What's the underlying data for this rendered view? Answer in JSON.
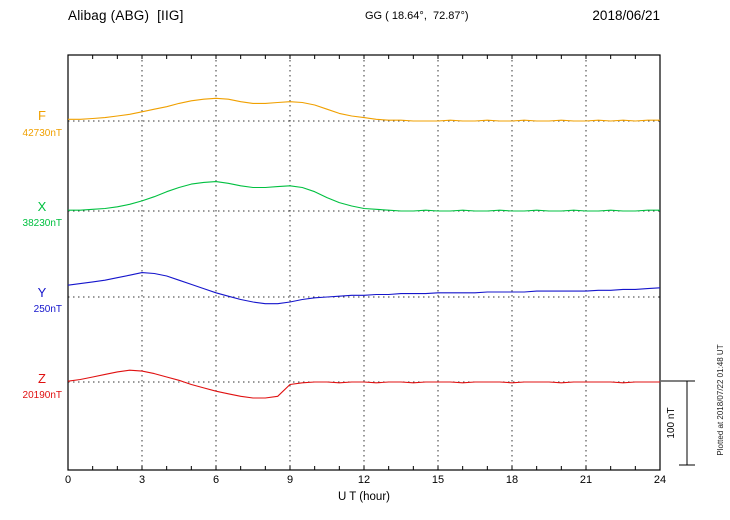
{
  "header": {
    "station": "Alibag (ABG)  [IIG]",
    "coords": "GG ( 18.64°,  72.87°)",
    "date": "2018/06/21"
  },
  "axis": {
    "xlabel": "U T (hour)",
    "ticks": [
      "0",
      "3",
      "6",
      "9",
      "12",
      "15",
      "18",
      "21",
      "24"
    ]
  },
  "scalebar": {
    "label": "100 nT"
  },
  "footer_note": "Plotted at 2018/07/22 01:48 UT",
  "chart_data": {
    "type": "line",
    "title": "Alibag (ABG) [IIG] magnetogram 2018/06/21",
    "xlabel": "U T (hour)",
    "x_range": [
      0,
      24
    ],
    "x_step_hours": 0.5,
    "x_tick_interval_hours": 3,
    "scale_bar_nT": 100,
    "grid": "dotted vertical lines every 3 h, dotted horizontal baseline per trace",
    "series": [
      {
        "name": "F",
        "label": "F",
        "baseline_label": "42730nT",
        "baseline_nT": 42730,
        "color": "#f0a000",
        "units": "nT above baseline",
        "values": [
          2,
          2,
          3,
          4,
          6,
          8,
          11,
          14,
          17,
          21,
          24,
          26,
          27,
          26,
          23,
          21,
          21,
          22,
          23,
          22,
          19,
          14,
          9,
          6,
          4,
          2,
          1,
          1,
          0,
          0,
          0,
          1,
          0,
          0,
          1,
          0,
          0,
          1,
          0,
          0,
          1,
          0,
          0,
          1,
          0,
          1,
          0,
          1,
          1
        ]
      },
      {
        "name": "X",
        "label": "X",
        "baseline_label": "38230nT",
        "baseline_nT": 38230,
        "color": "#00c040",
        "units": "nT above baseline",
        "values": [
          1,
          1,
          2,
          3,
          5,
          8,
          12,
          17,
          23,
          28,
          32,
          34,
          35,
          33,
          30,
          28,
          28,
          29,
          30,
          28,
          23,
          16,
          10,
          6,
          3,
          2,
          1,
          0,
          0,
          1,
          0,
          0,
          1,
          0,
          0,
          1,
          0,
          0,
          1,
          0,
          0,
          1,
          0,
          0,
          1,
          0,
          0,
          1,
          1
        ]
      },
      {
        "name": "Y",
        "label": "Y",
        "baseline_label": "250nT",
        "baseline_nT": 250,
        "color": "#1515cc",
        "units": "nT above baseline",
        "values": [
          14,
          16,
          18,
          20,
          23,
          26,
          29,
          28,
          25,
          20,
          15,
          10,
          5,
          1,
          -3,
          -6,
          -8,
          -8,
          -6,
          -3,
          -1,
          0,
          1,
          2,
          2,
          3,
          3,
          4,
          4,
          4,
          5,
          5,
          5,
          5,
          6,
          6,
          6,
          6,
          7,
          7,
          7,
          7,
          7,
          8,
          8,
          9,
          9,
          10,
          11
        ]
      },
      {
        "name": "Z",
        "label": "Z",
        "baseline_label": "20190nT",
        "baseline_nT": 20190,
        "color": "#e01010",
        "units": "nT above baseline",
        "values": [
          1,
          3,
          6,
          9,
          12,
          14,
          13,
          10,
          6,
          2,
          -3,
          -7,
          -11,
          -14,
          -17,
          -19,
          -19,
          -17,
          -3,
          -1,
          0,
          0,
          -1,
          0,
          0,
          -1,
          0,
          0,
          -1,
          0,
          0,
          0,
          -1,
          0,
          0,
          0,
          -1,
          0,
          0,
          0,
          -1,
          0,
          0,
          0,
          0,
          -1,
          0,
          0,
          0
        ]
      }
    ]
  }
}
